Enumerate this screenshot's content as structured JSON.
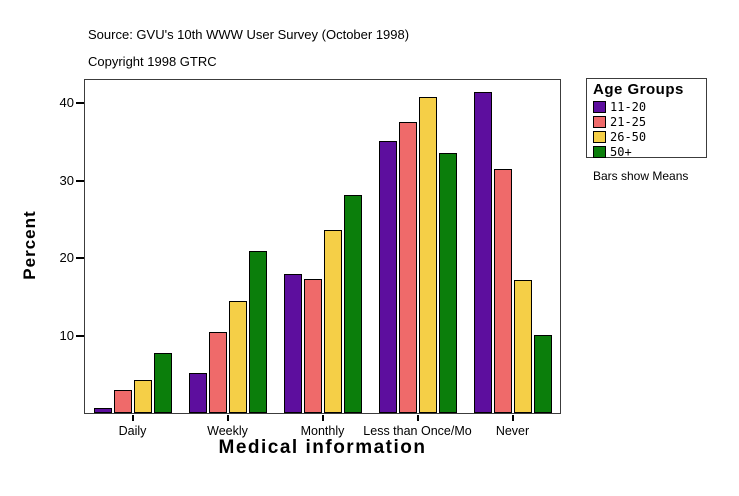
{
  "header": {
    "source_line": "Source: GVU's 10th WWW User Survey (October 1998)",
    "copyright_line": "Copyright 1998 GTRC"
  },
  "legend": {
    "title": "Age Groups",
    "note": "Bars show Means",
    "entries": [
      {
        "label": "11-20",
        "color": "#5D0E9E"
      },
      {
        "label": "21-25",
        "color": "#EF6A6A"
      },
      {
        "label": "26-50",
        "color": "#F5CF47"
      },
      {
        "label": "50+",
        "color": "#0B7E0B"
      }
    ]
  },
  "chart_data": {
    "type": "bar",
    "title": "",
    "xlabel": "Medical information",
    "ylabel": "Percent",
    "categories": [
      "Daily",
      "Weekly",
      "Monthly",
      "Less than Once/Mo",
      "Never"
    ],
    "series": [
      {
        "name": "11-20",
        "color": "#5D0E9E",
        "values": [
          0.7,
          5.2,
          17.9,
          35.1,
          41.5
        ]
      },
      {
        "name": "21-25",
        "color": "#EF6A6A",
        "values": [
          3.0,
          10.5,
          17.3,
          37.6,
          31.5
        ]
      },
      {
        "name": "26-50",
        "color": "#F5CF47",
        "values": [
          4.3,
          14.5,
          23.6,
          40.8,
          17.2
        ]
      },
      {
        "name": "50+",
        "color": "#0B7E0B",
        "values": [
          7.8,
          20.9,
          28.1,
          33.6,
          10.1
        ]
      }
    ],
    "yticks": [
      10,
      20,
      30,
      40
    ],
    "ylim": [
      0,
      43
    ],
    "grid": false,
    "legend_position": "right",
    "annotation": "Bars show Means",
    "source": "Source: GVU's 10th WWW User Survey (October 1998)",
    "copyright": "Copyright 1998 GTRC"
  }
}
